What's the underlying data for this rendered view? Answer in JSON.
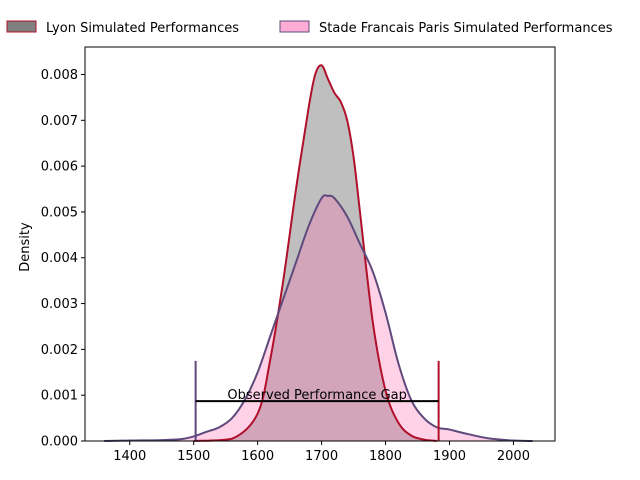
{
  "chart_data": {
    "type": "area",
    "title": "",
    "xlabel": "",
    "ylabel": "Density",
    "xlim": [
      1330,
      2065
    ],
    "ylim": [
      0,
      0.0086
    ],
    "xticks": [
      "1400",
      "1500",
      "1600",
      "1700",
      "1800",
      "1900",
      "2000"
    ],
    "yticks": [
      "0.000",
      "0.001",
      "0.002",
      "0.003",
      "0.004",
      "0.005",
      "0.006",
      "0.007",
      "0.008"
    ],
    "grid": false,
    "legend_position": "top, above plot",
    "series": [
      {
        "name": "Lyon Simulated Performances",
        "fill_color": "#808080",
        "line_color": "#b0102a",
        "x": [
          1500,
          1560,
          1600,
          1620,
          1640,
          1660,
          1680,
          1690,
          1700,
          1710,
          1720,
          1730,
          1740,
          1750,
          1760,
          1780,
          1800,
          1820,
          1840,
          1860,
          1880
        ],
        "y": [
          0.0,
          5e-05,
          0.0006,
          0.0018,
          0.0035,
          0.0055,
          0.0073,
          0.008,
          0.0082,
          0.0079,
          0.0076,
          0.0074,
          0.007,
          0.0062,
          0.005,
          0.0026,
          0.0011,
          0.0004,
          0.00012,
          3e-05,
          0.0
        ]
      },
      {
        "name": "Stade Francais Paris Simulated Performances",
        "fill_color": "#ff69b4",
        "line_color": "#5e4a7c",
        "x": [
          1360,
          1400,
          1450,
          1480,
          1500,
          1520,
          1540,
          1560,
          1580,
          1600,
          1620,
          1640,
          1660,
          1680,
          1700,
          1710,
          1720,
          1740,
          1760,
          1780,
          1800,
          1820,
          1840,
          1860,
          1880,
          1900,
          1920,
          1960,
          2000,
          2030
        ],
        "y": [
          0.0,
          1e-05,
          2e-05,
          4e-05,
          0.0001,
          0.0002,
          0.0003,
          0.0005,
          0.0009,
          0.0015,
          0.0023,
          0.0031,
          0.0039,
          0.0047,
          0.0053,
          0.00535,
          0.0053,
          0.0049,
          0.0043,
          0.0037,
          0.0028,
          0.0017,
          0.0009,
          0.0005,
          0.0003,
          0.00025,
          0.00018,
          6e-05,
          1e-05,
          0.0
        ]
      }
    ],
    "annotations": [
      {
        "text": "Observed Performance Gap",
        "x_start": 1503,
        "x_end": 1883,
        "y": 0.00087,
        "left_marker_height": 0.00175,
        "right_marker_height": 0.00175,
        "left_marker_color": "#5e4a7c",
        "right_marker_color": "#b0102a"
      }
    ]
  }
}
